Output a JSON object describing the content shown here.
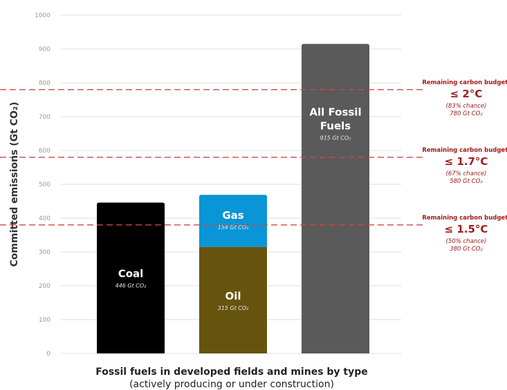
{
  "chart_data": {
    "type": "bar",
    "stacked": true,
    "ylabel": "Committed emissions (Gt CO₂)",
    "xlabel": "Fossil fuels in developed fields and mines by type",
    "xlabel_sub": "(actively producing or under construction)",
    "ylim": [
      0,
      1000
    ],
    "yticks": [
      0,
      100,
      200,
      300,
      400,
      500,
      600,
      700,
      800,
      900,
      1000
    ],
    "grid": true,
    "bars": [
      {
        "segments": [
          {
            "label_lines": [
              "Coal"
            ],
            "value": 446,
            "value_label": "446 Gt CO₂",
            "color": "#000000"
          }
        ]
      },
      {
        "segments": [
          {
            "label_lines": [
              "Oil"
            ],
            "value": 315,
            "value_label": "315 Gt CO₂",
            "color": "#66540e"
          },
          {
            "label_lines": [
              "Gas"
            ],
            "value": 154,
            "value_label": "154 Gt CO₂",
            "color": "#0a95d6"
          }
        ]
      },
      {
        "segments": [
          {
            "label_lines": [
              "All Fossil",
              "Fuels"
            ],
            "value": 915,
            "value_label": "915 Gt CO₂",
            "color": "#5a5a5a"
          }
        ]
      }
    ],
    "reference_lines": [
      {
        "value": 780,
        "heading": "Remaining carbon budget:",
        "temp": "≤ 2°C",
        "chance": "(83% chance)",
        "amount": "780 Gt CO₂"
      },
      {
        "value": 580,
        "heading": "Remaining carbon budget:",
        "temp": "≤ 1.7°C",
        "chance": "(67% chance)",
        "amount": "580 Gt CO₂"
      },
      {
        "value": 380,
        "heading": "Remaining carbon budget:",
        "temp": "≤ 1.5°C",
        "chance": "(50% chance)",
        "amount": "380 Gt CO₂"
      }
    ],
    "colors": {
      "grid": "#dcdcdc",
      "reference_line": "#d04545",
      "budget_text": "#a01b1b"
    }
  }
}
